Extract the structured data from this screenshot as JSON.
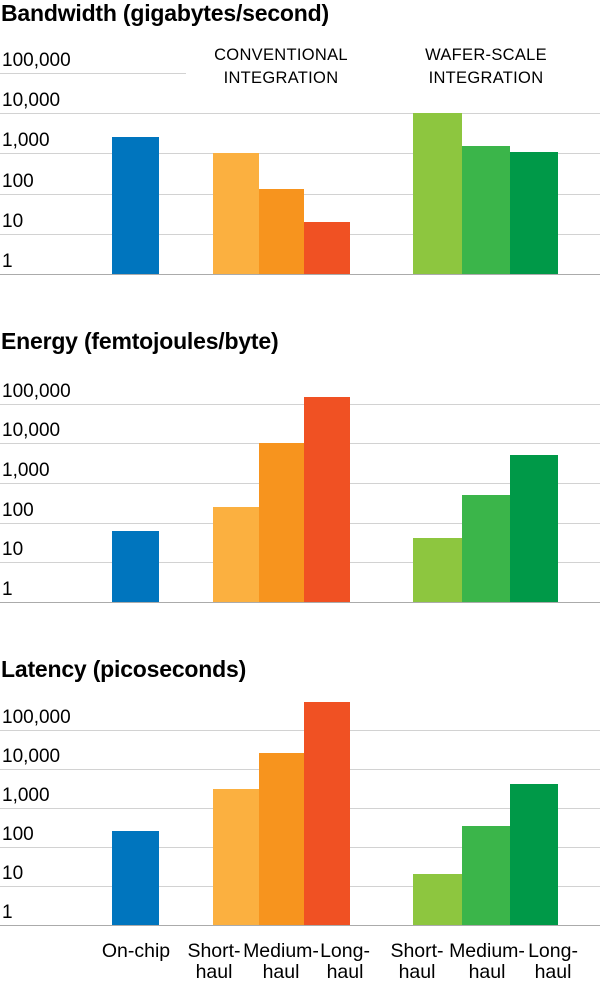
{
  "colors": {
    "background": "#ffffff",
    "text": "#000000",
    "gridline": "#d2d2d2",
    "axis_line": "#ababab",
    "on_chip_blue": "#0075be",
    "conventional_short_orange": "#fbb040",
    "conventional_medium_orange": "#f7941e",
    "conventional_long_red": "#f05123",
    "wafer_short_green": "#8dc63f",
    "wafer_medium_green": "#3bb54a",
    "wafer_long_green": "#009948"
  },
  "group_headers": [
    {
      "line1": "CONVENTIONAL",
      "line2": "INTEGRATION"
    },
    {
      "line1": "WAFER-SCALE",
      "line2": "INTEGRATION"
    }
  ],
  "x_axis_labels": [
    {
      "line1": "On-chip",
      "line2": ""
    },
    {
      "line1": "Short-",
      "line2": "haul"
    },
    {
      "line1": "Medium-",
      "line2": "haul"
    },
    {
      "line1": "Long-",
      "line2": "haul"
    },
    {
      "line1": "Short-",
      "line2": "haul"
    },
    {
      "line1": "Medium-",
      "line2": "haul"
    },
    {
      "line1": "Long-",
      "line2": "haul"
    }
  ],
  "chart_data": [
    {
      "key": "bandwidth",
      "type": "bar",
      "title": "Bandwidth (gigabytes/second)",
      "yscale": "log",
      "ylim": [
        1,
        100000
      ],
      "ytick_labels": [
        "1",
        "10",
        "100",
        "1,000",
        "10,000",
        "100,000"
      ],
      "categories": [
        "On-chip",
        "Short-haul",
        "Medium-haul",
        "Long-haul",
        "Short-haul",
        "Medium-haul",
        "Long-haul"
      ],
      "category_groups": [
        "On-chip",
        "Conventional integration",
        "Conventional integration",
        "Conventional integration",
        "Wafer-scale integration",
        "Wafer-scale integration",
        "Wafer-scale integration"
      ],
      "values": [
        2500,
        1000,
        130,
        20,
        10000,
        1500,
        1100
      ],
      "bar_colors": [
        "#0075be",
        "#fbb040",
        "#f7941e",
        "#f05123",
        "#8dc63f",
        "#3bb54a",
        "#009948"
      ],
      "grid": "horizontal",
      "legend": "none"
    },
    {
      "key": "energy",
      "type": "bar",
      "title": "Energy (femtojoules/byte)",
      "yscale": "log",
      "ylim": [
        1,
        100000
      ],
      "ytick_labels": [
        "1",
        "10",
        "100",
        "1,000",
        "10,000",
        "100,000"
      ],
      "categories": [
        "On-chip",
        "Short-haul",
        "Medium-haul",
        "Long-haul",
        "Short-haul",
        "Medium-haul",
        "Long-haul"
      ],
      "category_groups": [
        "On-chip",
        "Conventional integration",
        "Conventional integration",
        "Conventional integration",
        "Wafer-scale integration",
        "Wafer-scale integration",
        "Wafer-scale integration"
      ],
      "values": [
        60,
        250,
        10000,
        150000,
        40,
        500,
        5000
      ],
      "bar_colors": [
        "#0075be",
        "#fbb040",
        "#f7941e",
        "#f05123",
        "#8dc63f",
        "#3bb54a",
        "#009948"
      ],
      "grid": "horizontal",
      "legend": "none"
    },
    {
      "key": "latency",
      "type": "bar",
      "title": "Latency (picoseconds)",
      "yscale": "log",
      "ylim": [
        1,
        100000
      ],
      "ytick_labels": [
        "1",
        "10",
        "100",
        "1,000",
        "10,000",
        "100,000"
      ],
      "categories": [
        "On-chip",
        "Short-haul",
        "Medium-haul",
        "Long-haul",
        "Short-haul",
        "Medium-haul",
        "Long-haul"
      ],
      "category_groups": [
        "On-chip",
        "Conventional integration",
        "Conventional integration",
        "Conventional integration",
        "Wafer-scale integration",
        "Wafer-scale integration",
        "Wafer-scale integration"
      ],
      "values": [
        250,
        3000,
        25000,
        500000,
        20,
        350,
        4000
      ],
      "bar_colors": [
        "#0075be",
        "#fbb040",
        "#f7941e",
        "#f05123",
        "#8dc63f",
        "#3bb54a",
        "#009948"
      ],
      "grid": "horizontal",
      "legend": "none"
    }
  ]
}
